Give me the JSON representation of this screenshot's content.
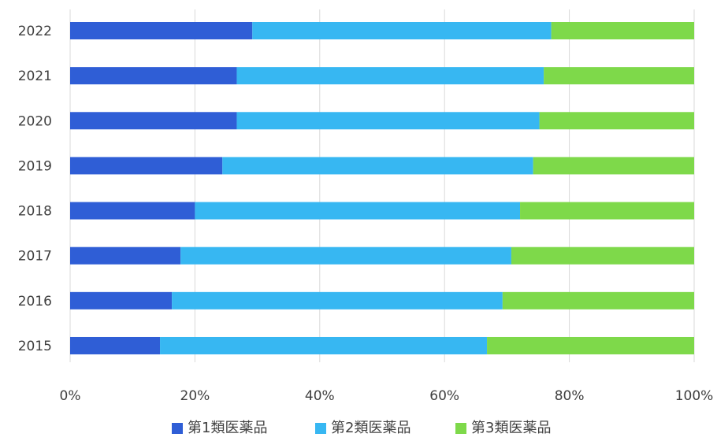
{
  "chart_data": {
    "type": "bar",
    "orientation": "horizontal",
    "stacked": "percent",
    "categories": [
      "2022",
      "2021",
      "2020",
      "2019",
      "2018",
      "2017",
      "2016",
      "2015"
    ],
    "series": [
      {
        "name": "第1類医薬品",
        "color": "#2f5ed6",
        "values": [
          29.2,
          26.7,
          26.7,
          24.4,
          20.0,
          17.7,
          16.3,
          14.4
        ]
      },
      {
        "name": "第2類医薬品",
        "color": "#37b7f2",
        "values": [
          47.9,
          49.2,
          48.5,
          49.8,
          52.1,
          53.0,
          53.0,
          52.4
        ]
      },
      {
        "name": "第3類医薬品",
        "color": "#7ed94a",
        "values": [
          22.9,
          24.1,
          24.8,
          25.8,
          27.9,
          29.3,
          30.7,
          33.2
        ]
      }
    ],
    "x_ticks": [
      "0%",
      "20%",
      "40%",
      "60%",
      "80%",
      "100%"
    ],
    "xlim": [
      0,
      100
    ],
    "grid": "vertical",
    "legend_position": "bottom"
  }
}
